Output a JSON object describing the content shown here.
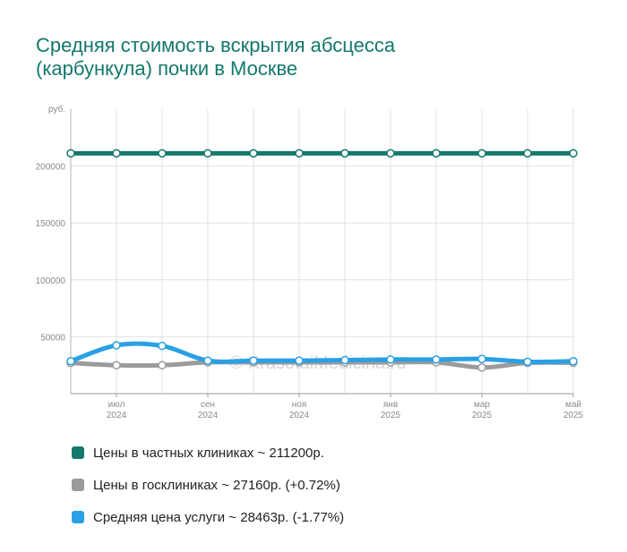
{
  "title": {
    "line1": "Средняя стоимость вскрытия абсцесса",
    "line2": "(карбункула) почки в Москве"
  },
  "watermark": "© KrasotaiMedicina.ru",
  "chart_data": {
    "type": "line",
    "ylabel": "руб.",
    "ylim": [
      0,
      250000
    ],
    "yticks": [
      50000,
      100000,
      150000,
      200000
    ],
    "grid": true,
    "x_tick_labels": [
      {
        "month": "июл",
        "year": "2024"
      },
      {
        "month": "сен",
        "year": "2024"
      },
      {
        "month": "ноя",
        "year": "2024"
      },
      {
        "month": "янв",
        "year": "2025"
      },
      {
        "month": "мар",
        "year": "2025"
      },
      {
        "month": "май",
        "year": "2025"
      }
    ],
    "series": [
      {
        "name": "Цены в частных клиниках",
        "color": "#13786c",
        "values": [
          211200,
          211200,
          211200,
          211200,
          211200,
          211200,
          211200,
          211200,
          211200,
          211200,
          211200,
          211200
        ]
      },
      {
        "name": "Цены в госклиниках",
        "color": "#9b9b9b",
        "values": [
          27000,
          25000,
          25000,
          27500,
          27500,
          27500,
          27500,
          27500,
          27500,
          23000,
          27000,
          27160
        ]
      },
      {
        "name": "Средняя цена услуги",
        "color": "#2aa0e4",
        "values": [
          28500,
          42500,
          42000,
          29000,
          29000,
          29000,
          29500,
          30000,
          30000,
          30500,
          28000,
          28463
        ]
      }
    ]
  },
  "legend": [
    {
      "label": "Цены в частных клиниках ~ 211200р.",
      "color": "#13786c"
    },
    {
      "label": "Цены в госклиниках ~ 27160р. (+0.72%)",
      "color": "#9b9b9b"
    },
    {
      "label": "Средняя цена услуги ~ 28463р. (-1.77%)",
      "color": "#2aa0e4"
    }
  ]
}
